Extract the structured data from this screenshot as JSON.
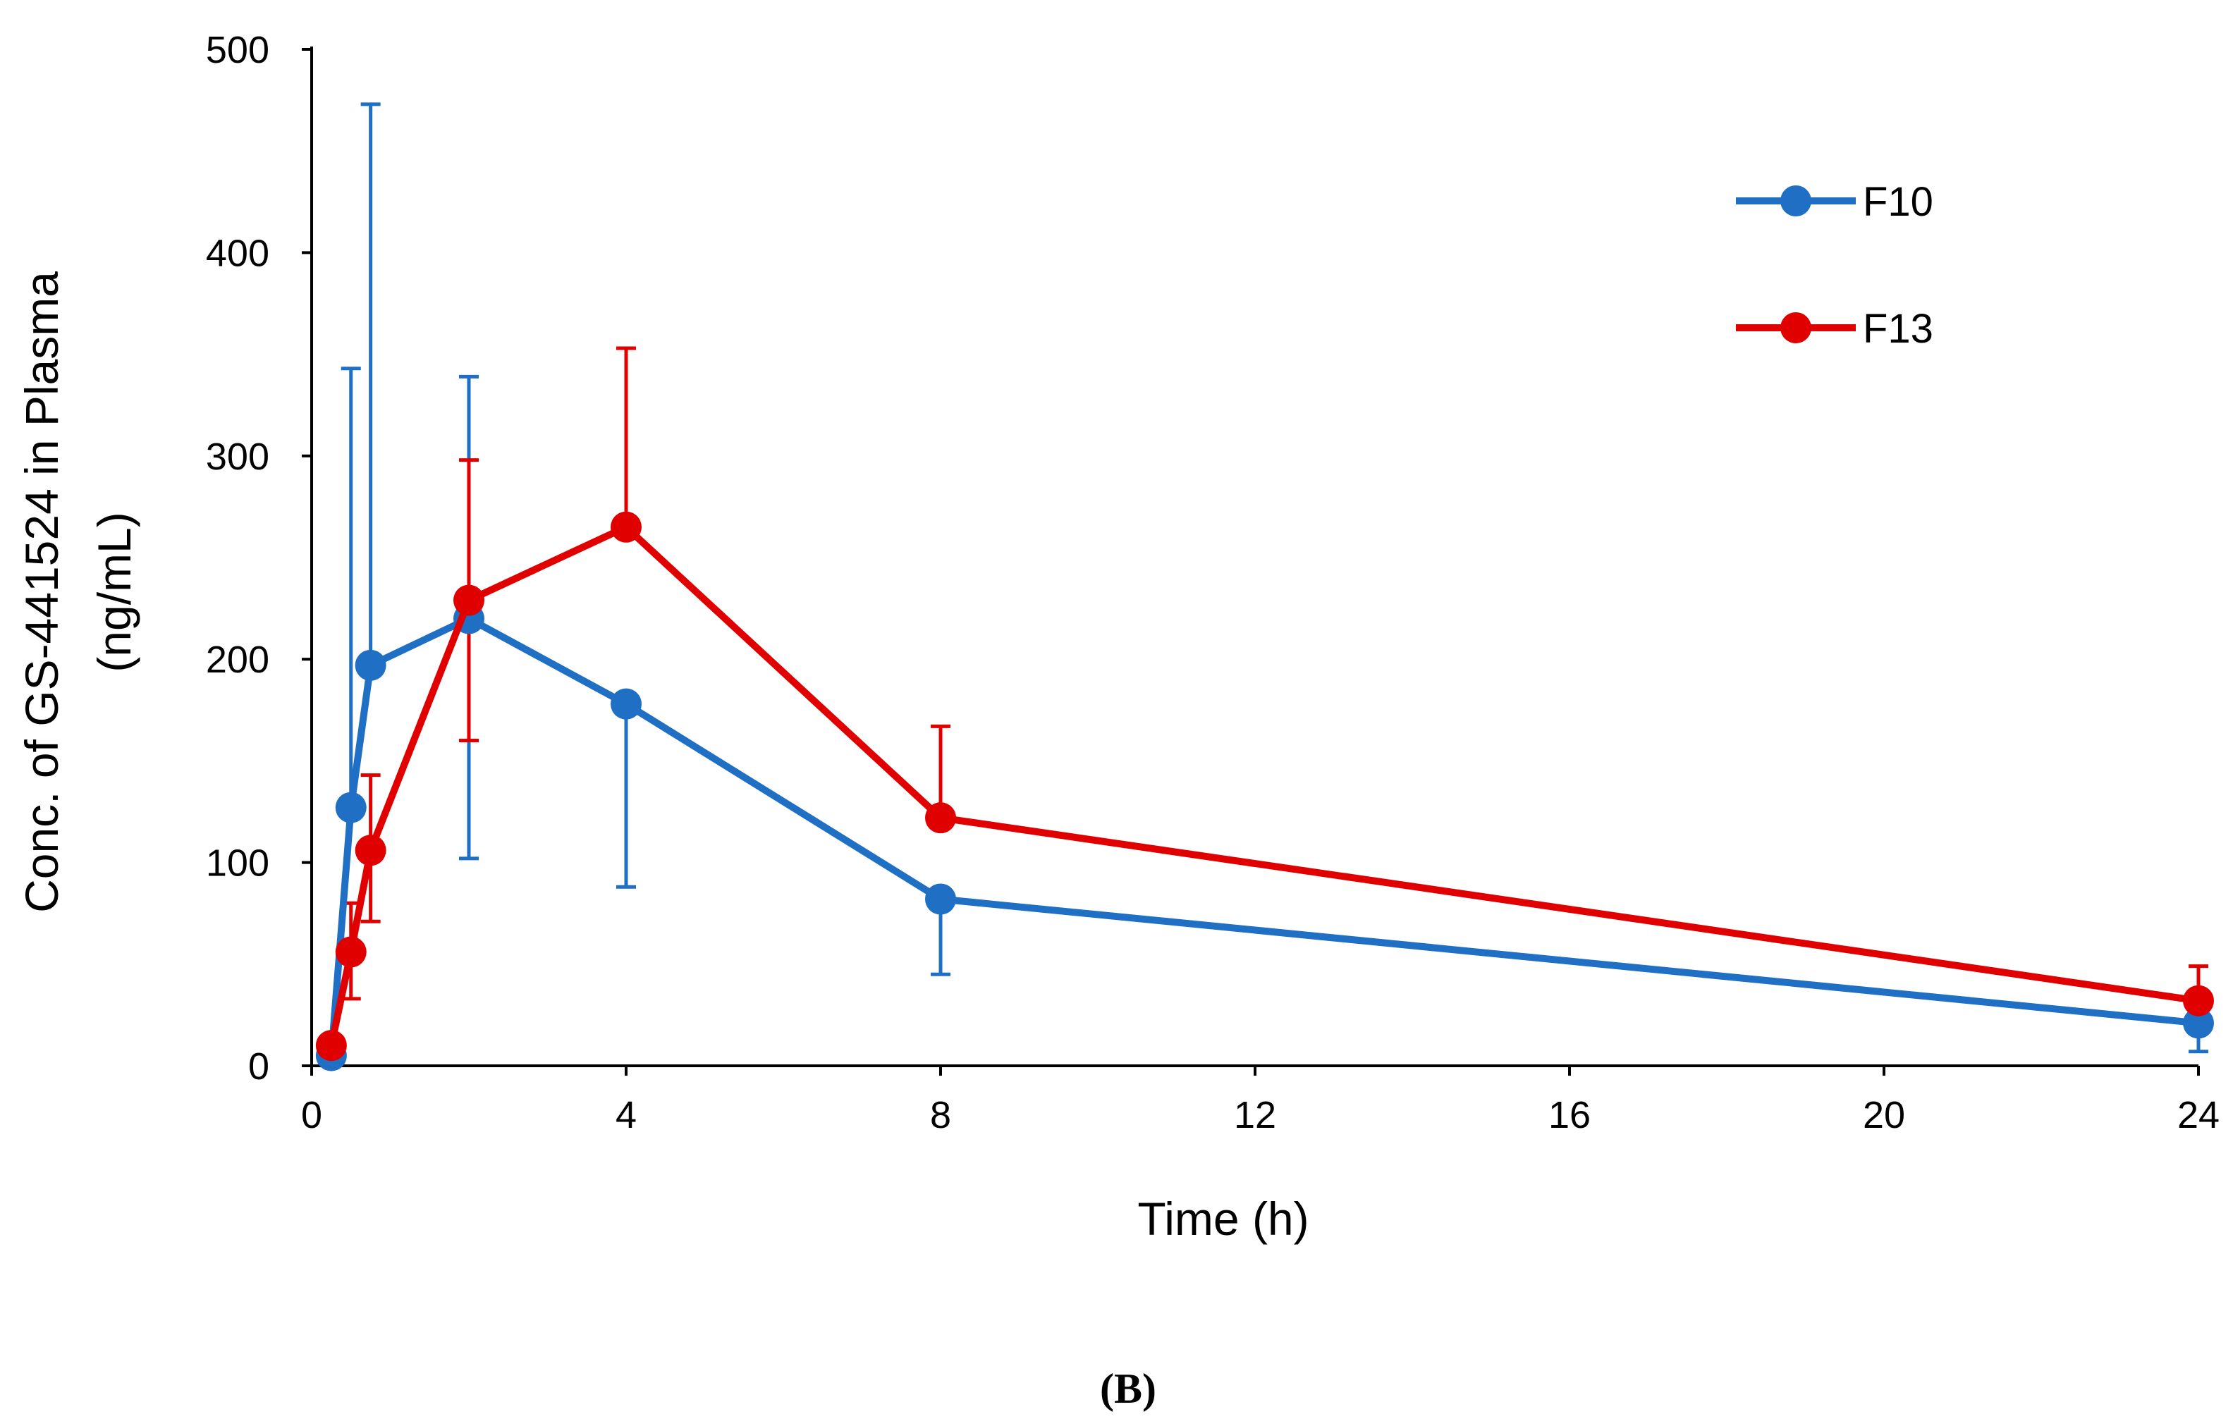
{
  "chart_data": {
    "type": "line",
    "title": "",
    "panel_label": "(B)",
    "xlabel": "Time (h)",
    "ylabel_line1": "Conc. of GS-441524 in Plasma",
    "ylabel_line2": "(ng/mL)",
    "xlim": [
      0,
      24
    ],
    "ylim": [
      0,
      500
    ],
    "xticks": [
      "0",
      "4",
      "8",
      "12",
      "16",
      "20",
      "24"
    ],
    "yticks": [
      "0",
      "100",
      "200",
      "300",
      "400",
      "500"
    ],
    "grid": false,
    "legend_position": "top-right",
    "series": [
      {
        "name": "F10",
        "color": "#1f6fc5",
        "x": [
          0.25,
          0.5,
          0.75,
          2,
          4,
          8,
          24
        ],
        "y": [
          5,
          127,
          197,
          220,
          178,
          82,
          21
        ],
        "err_upper": [
          2,
          343,
          473,
          339,
          0,
          0,
          0
        ],
        "err_lower": [
          2,
          0,
          0,
          102,
          88,
          45,
          7
        ]
      },
      {
        "name": "F13",
        "color": "#e00000",
        "x": [
          0.25,
          0.5,
          0.75,
          2,
          4,
          8,
          24
        ],
        "y": [
          10,
          56,
          106,
          229,
          265,
          122,
          32
        ],
        "err_upper": [
          7,
          80,
          143,
          298,
          353,
          167,
          49
        ],
        "err_lower": [
          7,
          33,
          71,
          160,
          0,
          0,
          0
        ]
      }
    ]
  }
}
